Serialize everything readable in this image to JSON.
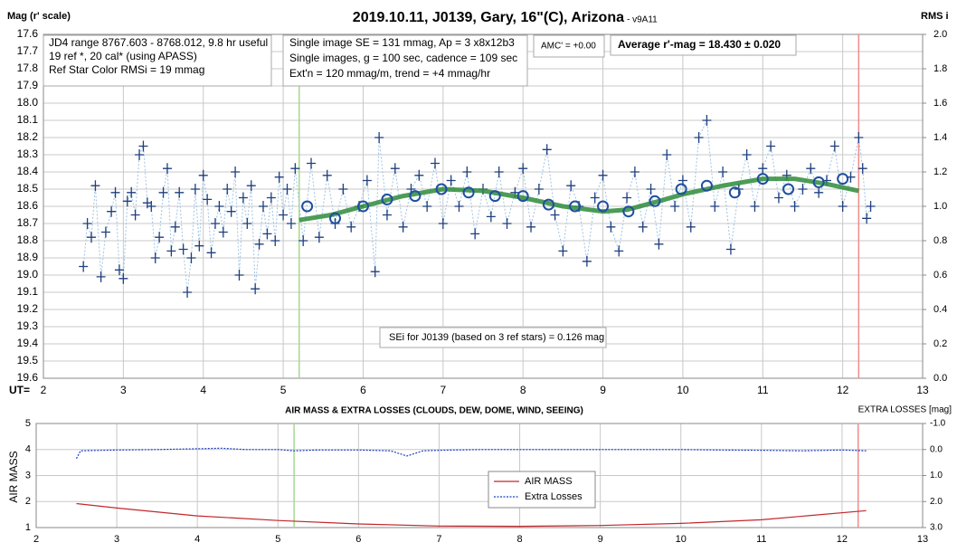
{
  "chart_data": [
    {
      "type": "scatter",
      "title": "2019.10.11, J0139, Gary, 16\"(C), Arizona",
      "subtitle": " - v9A11",
      "y_label": "Mag (r' scale)",
      "y2_label": "RMS i",
      "x_label": "UT=",
      "xlim": [
        2,
        13
      ],
      "xticks": [
        2,
        3,
        4,
        5,
        6,
        7,
        8,
        9,
        10,
        11,
        12,
        13
      ],
      "ylim": [
        17.6,
        19.6
      ],
      "y_inverted": true,
      "yticks": [
        17.6,
        17.7,
        17.8,
        17.9,
        {
          "value": 18,
          "label": "18.0"
        },
        18.1,
        18.2,
        18.3,
        18.4,
        18.5,
        18.6,
        18.7,
        18.8,
        18.9,
        {
          "value": 19,
          "label": "19.0"
        },
        19.1,
        19.2,
        19.3,
        19.4,
        19.5,
        19.6
      ],
      "y2lim": [
        0,
        2
      ],
      "y2ticks": [
        {
          "value": 0,
          "label": "0.0"
        },
        0.2,
        0.4,
        0.6,
        0.8,
        {
          "value": 1,
          "label": "1.0"
        },
        1.2,
        1.4,
        1.6,
        1.8,
        {
          "value": 2,
          "label": "2.0"
        }
      ],
      "grid": true,
      "vlines": [
        {
          "x": 5.2,
          "color": "#a6d98f"
        },
        {
          "x": 12.2,
          "color": "#f08c8c"
        }
      ],
      "annotations": [
        "JD4 range 8767.603 - 8768.012, 9.8 hr useful",
        "19 ref *, 20 cal* (using APASS)",
        "Ref Star Color RMSi = 19 mmag",
        "Single image SE = 131 mmag, Ap = 3 x8x12b3",
        "Single images, g = 100 sec, cadence = 109 sec",
        "Ext'n = 120 mmag/m, trend = +4 mmag/hr",
        "AMC' = +0.00",
        "Average r'-mag =  18.430 ± 0.020",
        "SEi for J0139 (based on 3 ref stars) = 0.126 mag"
      ],
      "series": [
        {
          "marker": "plus",
          "color": "#1f3f7f",
          "connect_color": "#9ec3e6",
          "x": [
            2.5,
            2.55,
            2.6,
            2.65,
            2.72,
            2.78,
            2.85,
            2.9,
            2.95,
            3.0,
            3.05,
            3.1,
            3.15,
            3.2,
            3.25,
            3.3,
            3.35,
            3.4,
            3.45,
            3.5,
            3.55,
            3.6,
            3.65,
            3.7,
            3.75,
            3.8,
            3.85,
            3.9,
            3.95,
            4.0,
            4.05,
            4.1,
            4.15,
            4.2,
            4.25,
            4.3,
            4.35,
            4.4,
            4.45,
            4.5,
            4.55,
            4.6,
            4.65,
            4.7,
            4.75,
            4.8,
            4.85,
            4.9,
            4.95,
            5.0,
            5.05,
            5.1,
            5.15,
            5.25,
            5.35,
            5.45,
            5.55,
            5.65,
            5.75,
            5.85,
            5.95,
            6.05,
            6.15,
            6.2,
            6.3,
            6.4,
            6.5,
            6.6,
            6.7,
            6.8,
            6.9,
            7.0,
            7.1,
            7.2,
            7.3,
            7.4,
            7.5,
            7.6,
            7.7,
            7.8,
            7.9,
            8.0,
            8.1,
            8.2,
            8.3,
            8.4,
            8.5,
            8.6,
            8.7,
            8.8,
            8.9,
            9.0,
            9.1,
            9.2,
            9.3,
            9.4,
            9.5,
            9.6,
            9.7,
            9.8,
            9.9,
            10.0,
            10.1,
            10.2,
            10.3,
            10.4,
            10.5,
            10.6,
            10.7,
            10.8,
            10.9,
            11.0,
            11.1,
            11.2,
            11.3,
            11.4,
            11.5,
            11.6,
            11.7,
            11.8,
            11.9,
            12.0,
            12.1,
            12.2,
            12.25,
            12.3,
            12.35
          ],
          "values": [
            18.95,
            18.7,
            18.78,
            18.48,
            19.01,
            18.75,
            18.63,
            18.52,
            18.97,
            19.02,
            18.57,
            18.52,
            18.65,
            18.3,
            18.25,
            18.58,
            18.6,
            18.9,
            18.78,
            18.52,
            18.38,
            18.86,
            18.72,
            18.52,
            18.85,
            19.1,
            18.9,
            18.5,
            18.83,
            18.42,
            18.56,
            18.87,
            18.7,
            18.6,
            18.75,
            18.5,
            18.63,
            18.4,
            19.0,
            18.55,
            18.7,
            18.48,
            19.08,
            18.82,
            18.6,
            18.76,
            18.55,
            18.8,
            18.43,
            18.65,
            18.5,
            18.7,
            18.38,
            18.8,
            18.35,
            18.78,
            18.42,
            18.7,
            18.5,
            18.72,
            18.6,
            18.45,
            18.98,
            18.2,
            18.65,
            18.38,
            18.72,
            18.5,
            18.42,
            18.6,
            18.35,
            18.7,
            18.45,
            18.6,
            18.4,
            18.76,
            18.5,
            18.66,
            18.4,
            18.7,
            18.52,
            18.38,
            18.72,
            18.5,
            18.27,
            18.65,
            18.86,
            18.48,
            18.6,
            18.92,
            18.55,
            18.42,
            18.72,
            18.86,
            18.55,
            18.4,
            18.72,
            18.5,
            18.82,
            18.3,
            18.6,
            18.45,
            18.72,
            18.2,
            18.1,
            18.6,
            18.4,
            18.85,
            18.5,
            18.3,
            18.6,
            18.38,
            18.25,
            18.55,
            18.42,
            18.6,
            18.5,
            18.38,
            18.52,
            18.45,
            18.25,
            18.6,
            18.43,
            18.2,
            18.38,
            18.67,
            18.6
          ]
        },
        {
          "marker": "line",
          "color": "#2e8b3a",
          "width": 5,
          "x": [
            5.2,
            5.6,
            6.0,
            6.5,
            7.0,
            7.5,
            8.0,
            8.5,
            9.0,
            9.3,
            9.7,
            10.0,
            10.5,
            11.0,
            11.4,
            11.8,
            12.2
          ],
          "values": [
            18.68,
            18.65,
            18.6,
            18.54,
            18.5,
            18.51,
            18.55,
            18.6,
            18.63,
            18.62,
            18.57,
            18.53,
            18.48,
            18.44,
            18.44,
            18.47,
            18.51
          ]
        },
        {
          "marker": "circle",
          "color": "#1f4fa0",
          "x": [
            5.3,
            5.65,
            6.0,
            6.3,
            6.65,
            6.98,
            7.32,
            7.65,
            8.0,
            8.32,
            8.65,
            9.0,
            9.32,
            9.65,
            9.98,
            10.3,
            10.65,
            11.0,
            11.32,
            11.7,
            12.0
          ],
          "values": [
            18.6,
            18.67,
            18.6,
            18.56,
            18.54,
            18.5,
            18.52,
            18.54,
            18.54,
            18.59,
            18.6,
            18.6,
            18.63,
            18.57,
            18.5,
            18.48,
            18.52,
            18.44,
            18.5,
            18.46,
            18.44
          ]
        }
      ]
    },
    {
      "type": "line",
      "title": "AIR MASS & EXTRA LOSSES (CLOUDS, DEW, DOME, WIND, SEEING)",
      "y_label": "AIR MASS",
      "y2_label": "EXTRA LOSSES [mag]",
      "xlim": [
        2,
        13
      ],
      "xticks": [
        2,
        3,
        4,
        5,
        6,
        7,
        8,
        9,
        10,
        11,
        12,
        13
      ],
      "ylim": [
        1,
        5
      ],
      "yticks": [
        1,
        2,
        3,
        4,
        5
      ],
      "y2lim": [
        -1,
        3
      ],
      "y2_inverted": true,
      "y2ticks": [
        {
          "value": -1,
          "label": "-1.0"
        },
        {
          "value": 0,
          "label": "0.0"
        },
        {
          "value": 1,
          "label": "1.0"
        },
        {
          "value": 2,
          "label": "2.0"
        },
        {
          "value": 3,
          "label": "3.0"
        }
      ],
      "grid": true,
      "legend": "center",
      "vlines": [
        {
          "x": 5.2,
          "color": "#a6d98f"
        },
        {
          "x": 12.2,
          "color": "#f08c8c"
        }
      ],
      "series": [
        {
          "name": "AIR MASS",
          "color": "#c0282d",
          "axis": "y",
          "x": [
            2.5,
            3.0,
            4.0,
            5.0,
            6.0,
            7.0,
            8.0,
            9.0,
            10.0,
            11.0,
            12.3
          ],
          "values": [
            1.92,
            1.75,
            1.45,
            1.27,
            1.14,
            1.06,
            1.05,
            1.08,
            1.16,
            1.3,
            1.65
          ]
        },
        {
          "name": "Extra Losses",
          "color": "#1f3fbf",
          "axis": "y2",
          "dash": true,
          "x": [
            2.5,
            2.55,
            3.0,
            3.5,
            4.0,
            4.3,
            4.6,
            5.0,
            5.2,
            5.5,
            6.0,
            6.4,
            6.6,
            6.8,
            7.0,
            7.5,
            8.0,
            8.5,
            9.0,
            9.5,
            10.0,
            10.5,
            11.0,
            11.5,
            12.0,
            12.3
          ],
          "values": [
            0.35,
            0.05,
            0.02,
            0.0,
            -0.03,
            -0.05,
            0.0,
            0.0,
            0.05,
            0.02,
            0.02,
            0.05,
            0.25,
            0.05,
            0.03,
            0.0,
            0.0,
            0.0,
            0.0,
            0.0,
            0.0,
            0.02,
            0.03,
            0.05,
            0.02,
            0.05
          ]
        }
      ]
    }
  ]
}
